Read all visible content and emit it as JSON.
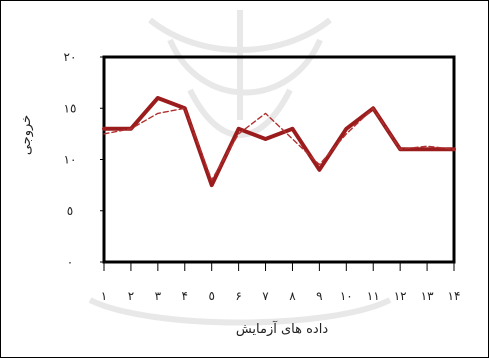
{
  "chart_data": {
    "type": "line",
    "title": "",
    "xlabel": "داده های آزمایش",
    "ylabel": "خروجی",
    "ylim": [
      0,
      20
    ],
    "xlim": [
      1,
      14
    ],
    "y_ticks": [
      0,
      5,
      10,
      15,
      20
    ],
    "y_tick_labels": [
      "٠",
      "٥",
      "١٠",
      "١٥",
      "٢٠"
    ],
    "x_ticks": [
      1,
      2,
      3,
      4,
      5,
      6,
      7,
      8,
      9,
      10,
      11,
      12,
      13,
      14
    ],
    "x_tick_labels": [
      "١",
      "٢",
      "٣",
      "۴",
      "٥",
      "۶",
      "٧",
      "٨",
      "٩",
      "١٠",
      "١١",
      "١٢",
      "١٣",
      "١۴"
    ],
    "grid": false,
    "legend": "none",
    "series": [
      {
        "style": "solid",
        "color": "#9b1c1c",
        "x": [
          1,
          2,
          3,
          4,
          5,
          6,
          7,
          8,
          9,
          10,
          11,
          12,
          13,
          14
        ],
        "y": [
          13,
          13,
          16,
          15,
          7.5,
          13,
          12,
          13,
          9,
          13,
          15,
          11,
          11,
          11
        ]
      },
      {
        "style": "dashed",
        "color": "#b03030",
        "x": [
          1,
          2,
          3,
          4,
          5,
          6,
          7,
          8,
          9,
          10,
          11,
          12,
          13,
          14
        ],
        "y": [
          12.5,
          13,
          14.5,
          15,
          8,
          12.5,
          14.5,
          12,
          9.5,
          12.5,
          15,
          11,
          11.3,
          11
        ]
      }
    ]
  }
}
